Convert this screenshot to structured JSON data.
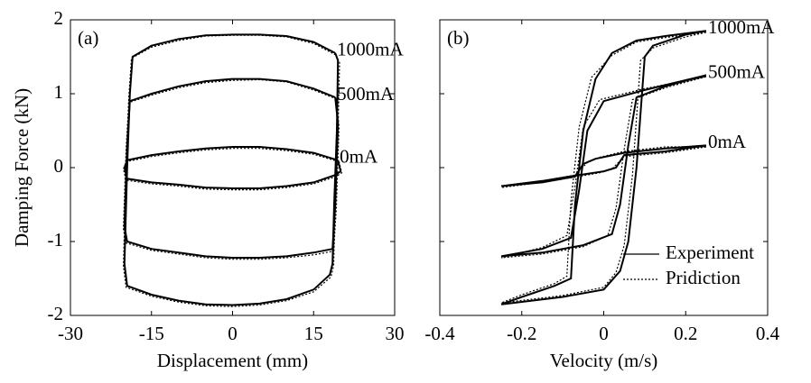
{
  "chart_data": [
    {
      "type": "line",
      "panel": "(a)",
      "xlabel": "Displacement (mm)",
      "ylabel": "Damping Force (kN)",
      "xlim": [
        -30,
        30
      ],
      "xticks": [
        -30,
        -15,
        0,
        15,
        30
      ],
      "ylim": [
        -2,
        2
      ],
      "yticks": [
        -2,
        -1,
        0,
        1,
        2
      ],
      "show_ytick_labels": true,
      "series": [
        {
          "dash": "solid",
          "color": "#000000",
          "loops": [
            {
              "label": "1000mA",
              "x": [
                19,
                19.5,
                19.3,
                18.8,
                18.5,
                18,
                15,
                10,
                5,
                0,
                -5,
                -10,
                -15,
                -19.5,
                -20,
                -19.5,
                -19,
                -18.5,
                -15,
                -10,
                -5,
                0,
                5,
                10,
                15,
                19
              ],
              "values": [
                1.55,
                1.45,
                0.5,
                -0.5,
                -1.3,
                -1.45,
                -1.65,
                -1.78,
                -1.84,
                -1.86,
                -1.85,
                -1.8,
                -1.72,
                -1.6,
                -1.3,
                0,
                1,
                1.5,
                1.65,
                1.74,
                1.79,
                1.8,
                1.8,
                1.78,
                1.7,
                1.55
              ]
            },
            {
              "label": "500mA",
              "x": [
                19,
                19.5,
                19,
                18.5,
                15,
                10,
                5,
                0,
                -5,
                -10,
                -15,
                -19.5,
                -20,
                -19.5,
                -19,
                -15,
                -10,
                -5,
                0,
                5,
                10,
                15,
                19
              ],
              "values": [
                0.95,
                0.6,
                -0.5,
                -1.1,
                -1.15,
                -1.2,
                -1.22,
                -1.22,
                -1.2,
                -1.15,
                -1.1,
                -1,
                -0.8,
                0.3,
                0.9,
                1,
                1.1,
                1.17,
                1.2,
                1.2,
                1.17,
                1.07,
                0.95
              ]
            },
            {
              "label": "0mA",
              "x": [
                19.5,
                20,
                19,
                15,
                10,
                5,
                0,
                -5,
                -10,
                -15,
                -19.5,
                -20,
                -19.5,
                -15,
                -10,
                -5,
                0,
                5,
                10,
                15,
                19.5
              ],
              "values": [
                0.1,
                -0.05,
                -0.1,
                -0.2,
                -0.25,
                -0.28,
                -0.28,
                -0.27,
                -0.23,
                -0.2,
                -0.15,
                0,
                0.1,
                0.17,
                0.22,
                0.26,
                0.28,
                0.28,
                0.25,
                0.2,
                0.1
              ]
            }
          ]
        },
        {
          "dash": "dotted",
          "color": "#000000",
          "loops": [
            {
              "x": [
                19.2,
                19.8,
                19.5,
                19,
                18.7,
                18.2,
                15,
                10,
                5,
                0,
                -5,
                -10,
                -15,
                -19.7,
                -20.2,
                -19.7,
                -19.2,
                -18.7,
                -15,
                -10,
                -5,
                0,
                5,
                10,
                15,
                19.2
              ],
              "values": [
                1.52,
                1.42,
                0.45,
                -0.55,
                -1.33,
                -1.48,
                -1.68,
                -1.8,
                -1.86,
                -1.88,
                -1.87,
                -1.82,
                -1.74,
                -1.62,
                -1.33,
                -0.05,
                0.95,
                1.48,
                1.63,
                1.72,
                1.78,
                1.79,
                1.79,
                1.77,
                1.68,
                1.52
              ]
            },
            {
              "x": [
                19.2,
                19.7,
                19.2,
                18.7,
                15,
                10,
                5,
                0,
                -5,
                -10,
                -15,
                -19.7,
                -20.2,
                -19.7,
                -19.2,
                -15,
                -10,
                -5,
                0,
                5,
                10,
                15,
                19.2
              ],
              "values": [
                0.93,
                0.55,
                -0.55,
                -1.13,
                -1.18,
                -1.22,
                -1.24,
                -1.24,
                -1.22,
                -1.17,
                -1.12,
                -1.02,
                -0.83,
                0.25,
                0.88,
                0.98,
                1.08,
                1.15,
                1.18,
                1.19,
                1.16,
                1.05,
                0.93
              ]
            },
            {
              "x": [
                19.7,
                20.2,
                19.2,
                15,
                10,
                5,
                0,
                -5,
                -10,
                -15,
                -19.7,
                -20.2,
                -19.7,
                -15,
                -10,
                -5,
                0,
                5,
                10,
                15,
                19.7
              ],
              "values": [
                0.08,
                -0.07,
                -0.12,
                -0.22,
                -0.27,
                -0.3,
                -0.3,
                -0.29,
                -0.25,
                -0.22,
                -0.17,
                -0.02,
                0.08,
                0.15,
                0.2,
                0.24,
                0.26,
                0.26,
                0.23,
                0.18,
                0.08
              ]
            }
          ]
        }
      ]
    },
    {
      "type": "line",
      "panel": "(b)",
      "xlabel": "Velocity (m/s)",
      "xlim": [
        -0.4,
        0.4
      ],
      "xticks": [
        -0.4,
        -0.2,
        0,
        0.2,
        0.4
      ],
      "ylim": [
        -2,
        2
      ],
      "yticks": [
        -2,
        -1,
        0,
        1,
        2
      ],
      "show_ytick_labels": false,
      "legend": "lower right",
      "series": [
        {
          "name": "Experiment",
          "dash": "solid",
          "color": "#000000",
          "loops": [
            {
              "label": "1000mA",
              "x": [
                0.25,
                0.2,
                0.12,
                0.1,
                0.08,
                0.06,
                0.04,
                0,
                -0.1,
                -0.25,
                -0.2,
                -0.12,
                -0.08,
                -0.07,
                -0.05,
                -0.02,
                0.02,
                0.08,
                0.15,
                0.25
              ],
              "values": [
                1.85,
                1.8,
                1.65,
                1.5,
                0,
                -1,
                -1.4,
                -1.65,
                -1.75,
                -1.85,
                -1.75,
                -1.6,
                -1.5,
                -0.5,
                0.5,
                1.2,
                1.55,
                1.72,
                1.78,
                1.85
              ]
            },
            {
              "label": "500mA",
              "x": [
                0.25,
                0.15,
                0.08,
                0.06,
                0.04,
                0.02,
                -0.05,
                -0.15,
                -0.25,
                -0.15,
                -0.08,
                -0.06,
                -0.04,
                0,
                0.1,
                0.25
              ],
              "values": [
                1.25,
                1.1,
                0.95,
                0.3,
                -0.5,
                -0.9,
                -1.05,
                -1.15,
                -1.2,
                -1.1,
                -0.95,
                -0.3,
                0.5,
                0.9,
                1.05,
                1.25
              ]
            },
            {
              "label": "0mA",
              "x": [
                0.25,
                0.15,
                0.05,
                0.03,
                0,
                -0.06,
                -0.15,
                -0.25,
                -0.15,
                -0.07,
                -0.05,
                -0.02,
                0.05,
                0.15,
                0.25
              ],
              "values": [
                0.3,
                0.22,
                0.17,
                0,
                -0.05,
                -0.1,
                -0.18,
                -0.25,
                -0.2,
                -0.12,
                0.05,
                0.12,
                0.2,
                0.26,
                0.3
              ]
            }
          ]
        },
        {
          "name": "Pridiction",
          "dash": "dotted",
          "color": "#000000",
          "loops": [
            {
              "x": [
                0.25,
                0.2,
                0.12,
                0.09,
                0.07,
                0.05,
                0.03,
                0,
                -0.1,
                -0.25,
                -0.2,
                -0.12,
                -0.09,
                -0.08,
                -0.06,
                -0.03,
                0.02,
                0.08,
                0.15,
                0.25
              ],
              "values": [
                1.83,
                1.77,
                1.62,
                1.45,
                -0.1,
                -1.05,
                -1.42,
                -1.62,
                -1.73,
                -1.83,
                -1.72,
                -1.57,
                -1.47,
                -0.45,
                0.55,
                1.22,
                1.52,
                1.7,
                1.76,
                1.83
              ]
            },
            {
              "x": [
                0.25,
                0.15,
                0.07,
                0.05,
                0.03,
                0.01,
                -0.05,
                -0.15,
                -0.25,
                -0.15,
                -0.09,
                -0.07,
                -0.05,
                -0.01,
                0.1,
                0.25
              ],
              "values": [
                1.23,
                1.08,
                0.92,
                0.25,
                -0.55,
                -0.92,
                -1.07,
                -1.17,
                -1.22,
                -1.08,
                -0.92,
                -0.25,
                0.55,
                0.92,
                1.07,
                1.23
              ]
            },
            {
              "x": [
                0.25,
                0.15,
                0.05,
                0.02,
                -0.01,
                -0.06,
                -0.15,
                -0.25,
                -0.15,
                -0.07,
                -0.04,
                -0.01,
                0.05,
                0.15,
                0.25
              ],
              "values": [
                0.28,
                0.2,
                0.15,
                -0.02,
                -0.07,
                -0.12,
                -0.2,
                -0.27,
                -0.18,
                -0.1,
                0.07,
                0.14,
                0.22,
                0.28,
                0.28
              ]
            }
          ]
        }
      ]
    }
  ]
}
